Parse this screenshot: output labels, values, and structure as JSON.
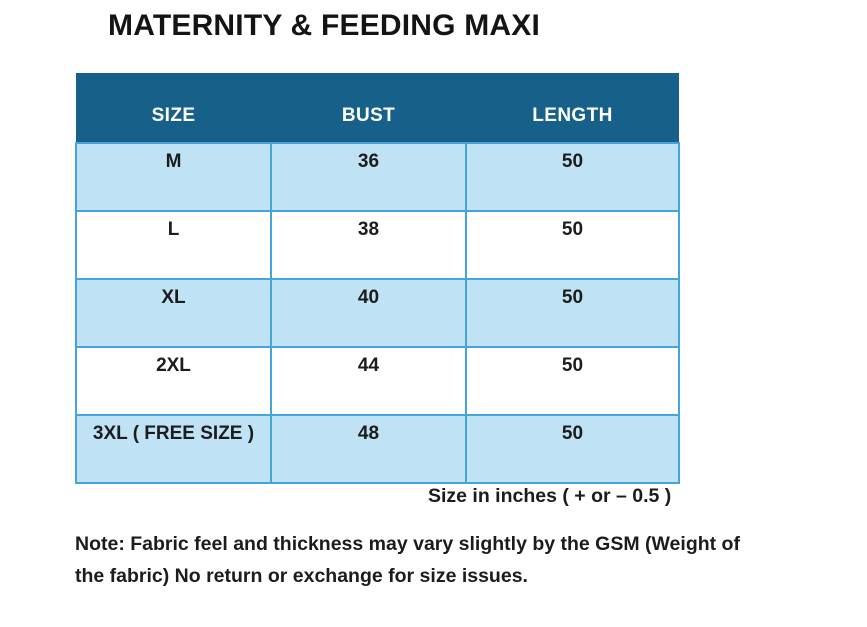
{
  "page": {
    "title": "MATERNITY & FEEDING MAXI"
  },
  "table": {
    "headers": [
      "SIZE",
      "BUST",
      "LENGTH"
    ],
    "rows": [
      {
        "size": "M",
        "bust": "36",
        "length": "50"
      },
      {
        "size": "L",
        "bust": "38",
        "length": "50"
      },
      {
        "size": "XL",
        "bust": "40",
        "length": "50"
      },
      {
        "size": "2XL",
        "bust": "44",
        "length": "50"
      },
      {
        "size": "3XL ( FREE SIZE )",
        "bust": "48",
        "length": "50"
      }
    ]
  },
  "footer": {
    "units_note": "Size in inches ( + or  – 0.5 )",
    "note_line1": "Note: Fabric feel and thickness may vary slightly by the GSM (Weight of",
    "note_line2": "the fabric) No return or exchange for size issues."
  },
  "colors": {
    "header_bg": "#17608a",
    "header_text": "#ffffff",
    "alt_row_bg": "#bfe3f4",
    "row_bg": "#ffffff",
    "border": "#45a4d9",
    "text": "#1c1c1c"
  },
  "chart_data": {
    "type": "table",
    "title": "MATERNITY & FEEDING MAXI",
    "columns": [
      "SIZE",
      "BUST",
      "LENGTH"
    ],
    "rows": [
      [
        "M",
        "36",
        "50"
      ],
      [
        "L",
        "38",
        "50"
      ],
      [
        "XL",
        "40",
        "50"
      ],
      [
        "2XL",
        "44",
        "50"
      ],
      [
        "3XL ( FREE SIZE )",
        "48",
        "50"
      ]
    ],
    "units_note": "Size in inches ( + or  – 0.5 )",
    "footnote": "Note: Fabric feel and thickness may vary slightly by the GSM (Weight of the fabric) No return or exchange for size issues."
  }
}
